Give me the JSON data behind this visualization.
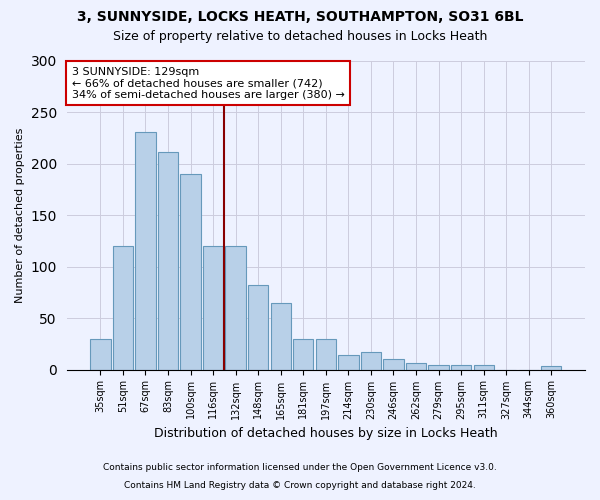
{
  "title1": "3, SUNNYSIDE, LOCKS HEATH, SOUTHAMPTON, SO31 6BL",
  "title2": "Size of property relative to detached houses in Locks Heath",
  "xlabel": "Distribution of detached houses by size in Locks Heath",
  "ylabel": "Number of detached properties",
  "categories": [
    "35sqm",
    "51sqm",
    "67sqm",
    "83sqm",
    "100sqm",
    "116sqm",
    "132sqm",
    "148sqm",
    "165sqm",
    "181sqm",
    "197sqm",
    "214sqm",
    "230sqm",
    "246sqm",
    "262sqm",
    "279sqm",
    "295sqm",
    "311sqm",
    "327sqm",
    "344sqm",
    "360sqm"
  ],
  "values": [
    30,
    120,
    231,
    211,
    190,
    120,
    120,
    82,
    65,
    30,
    30,
    14,
    17,
    10,
    6,
    4,
    4,
    4,
    0,
    0,
    3
  ],
  "bar_color": "#b8d0e8",
  "bar_edge_color": "#6699bb",
  "vline_color": "#880000",
  "vline_x_idx": 6,
  "annotation_text": "3 SUNNYSIDE: 129sqm\n← 66% of detached houses are smaller (742)\n34% of semi-detached houses are larger (380) →",
  "annotation_box_color": "white",
  "annotation_box_edge_color": "#cc0000",
  "footer1": "Contains HM Land Registry data © Crown copyright and database right 2024.",
  "footer2": "Contains public sector information licensed under the Open Government Licence v3.0.",
  "ylim": [
    0,
    300
  ],
  "background_color": "#eef2ff",
  "grid_color": "#ccccdd",
  "title1_fontsize": 10,
  "title2_fontsize": 9,
  "ylabel_fontsize": 8,
  "xlabel_fontsize": 9,
  "tick_fontsize": 7,
  "annotation_fontsize": 8
}
